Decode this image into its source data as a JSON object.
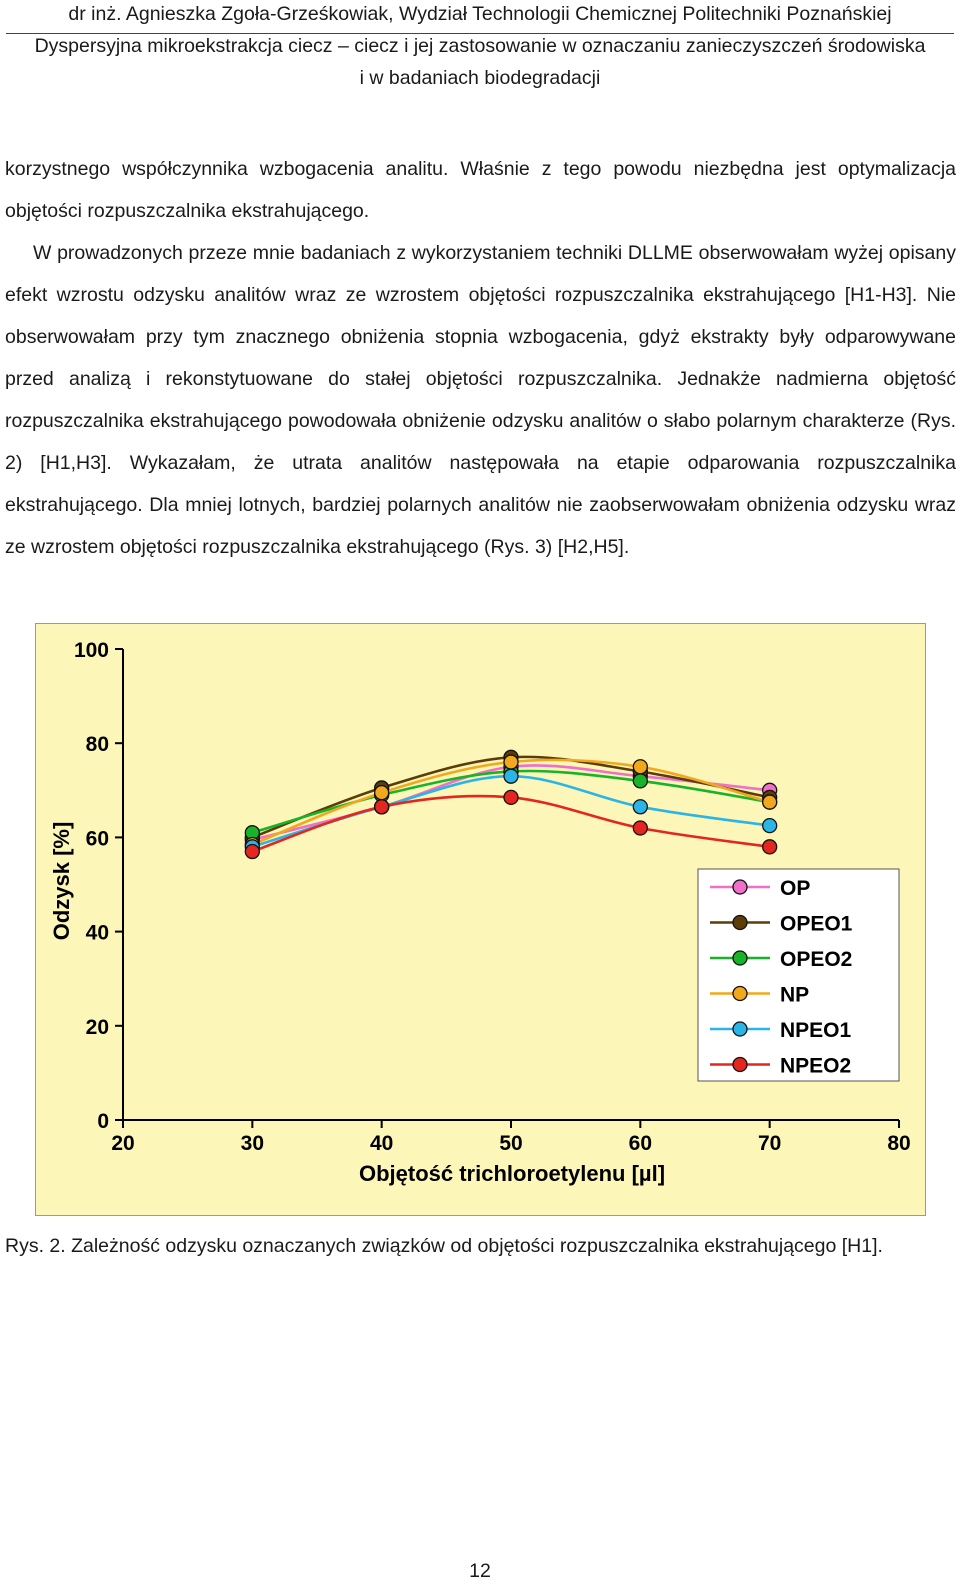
{
  "header": {
    "line1": "dr inż. Agnieszka Zgoła-Grześkowiak, Wydział Technologii Chemicznej Politechniki Poznańskiej",
    "line2": "Dyspersyjna mikroekstrakcja ciecz – ciecz i jej zastosowanie w oznaczaniu zanieczyszczeń środowiska",
    "line3": "i w badaniach biodegradacji"
  },
  "paragraphs": [
    "korzystnego współczynnika wzbogacenia analitu. Właśnie z tego powodu niezbędna jest optymalizacja objętości rozpuszczalnika ekstrahującego.",
    "W prowadzonych przeze mnie badaniach z wykorzystaniem techniki DLLME obserwowałam wyżej opisany efekt wzrostu odzysku analitów wraz ze wzrostem objętości rozpuszczalnika ekstrahującego [H1-H3]. Nie obserwowałam przy tym znacznego obniżenia stopnia wzbogacenia, gdyż ekstrakty były odparowywane przed analizą i rekonstytuowane do stałej objętości rozpuszczalnika. Jednakże nadmierna objętość rozpuszczalnika ekstrahującego powodowała obniżenie odzysku analitów o słabo polarnym charakterze (Rys. 2) [H1,H3]. Wykazałam, że utrata analitów następowała na etapie odparowania rozpuszczalnika ekstrahującego. Dla mniej lotnych, bardziej polarnych analitów nie zaobserwowałam obniżenia odzysku wraz ze wzrostem objętości rozpuszczalnika ekstrahującego (Rys. 3) [H2,H5]."
  ],
  "caption": "Rys. 2. Zależność odzysku oznaczanych związków od objętości rozpuszczalnika ekstrahującego [H1].",
  "page_number": "12",
  "chart_data": {
    "type": "line",
    "xlabel": "Objętość trichloroetylenu [µl]",
    "ylabel": "Odzysk [%]",
    "xlim": [
      20,
      80
    ],
    "ylim": [
      0,
      100
    ],
    "xticks": [
      "20",
      "30",
      "40",
      "50",
      "60",
      "70",
      "80"
    ],
    "yticks": [
      "0",
      "20",
      "40",
      "60",
      "80",
      "100"
    ],
    "x": [
      30,
      40,
      50,
      60,
      70
    ],
    "background": "#fcf6b8",
    "grid": false,
    "legend_position": "bottom-right",
    "line_style": "smoothed curve with circular markers",
    "series": [
      {
        "name": "OP",
        "color": "#f06fc8",
        "values": [
          59.5,
          66.5,
          75,
          73,
          70
        ]
      },
      {
        "name": "OPEO1",
        "color": "#5c3d0a",
        "values": [
          60,
          70.5,
          77,
          74,
          68.5
        ]
      },
      {
        "name": "OPEO2",
        "color": "#19b32a",
        "values": [
          61,
          69,
          74,
          72,
          67.5
        ]
      },
      {
        "name": "NP",
        "color": "#f2a81d",
        "values": [
          58.5,
          69.5,
          76,
          75,
          67.5
        ]
      },
      {
        "name": "NPEO1",
        "color": "#2bb5e6",
        "values": [
          58,
          66.5,
          73,
          66.5,
          62.5
        ]
      },
      {
        "name": "NPEO2",
        "color": "#e3261f",
        "values": [
          57,
          66.5,
          68.5,
          62,
          58
        ]
      }
    ]
  }
}
